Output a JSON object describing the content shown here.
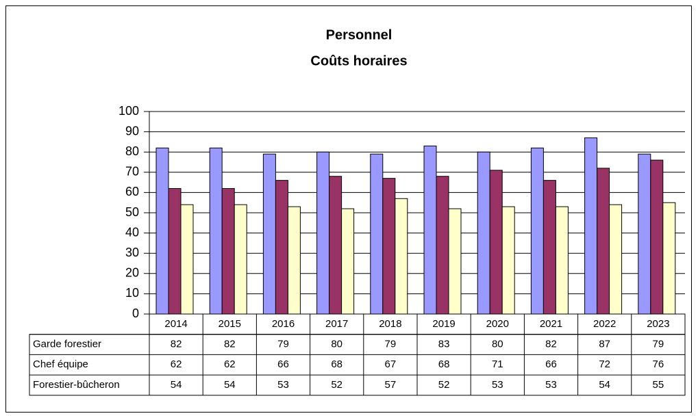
{
  "chart_data": {
    "type": "bar",
    "title": [
      "Personnel",
      "Coûts horaires"
    ],
    "categories": [
      "2014",
      "2015",
      "2016",
      "2017",
      "2018",
      "2019",
      "2020",
      "2021",
      "2022",
      "2023"
    ],
    "series": [
      {
        "name": "Garde forestier",
        "color": "#9999ff",
        "values": [
          82,
          82,
          79,
          80,
          79,
          83,
          80,
          82,
          87,
          79
        ]
      },
      {
        "name": "Chef équipe",
        "color": "#993366",
        "values": [
          62,
          62,
          66,
          68,
          67,
          68,
          71,
          66,
          72,
          76
        ]
      },
      {
        "name": "Forestier-bûcheron",
        "color": "#ffffcc",
        "values": [
          54,
          54,
          53,
          52,
          57,
          52,
          53,
          53,
          54,
          55
        ]
      }
    ],
    "ylim": [
      0,
      100
    ],
    "yticks": [
      0,
      10,
      20,
      30,
      40,
      50,
      60,
      70,
      80,
      90,
      100
    ],
    "grid": true
  }
}
